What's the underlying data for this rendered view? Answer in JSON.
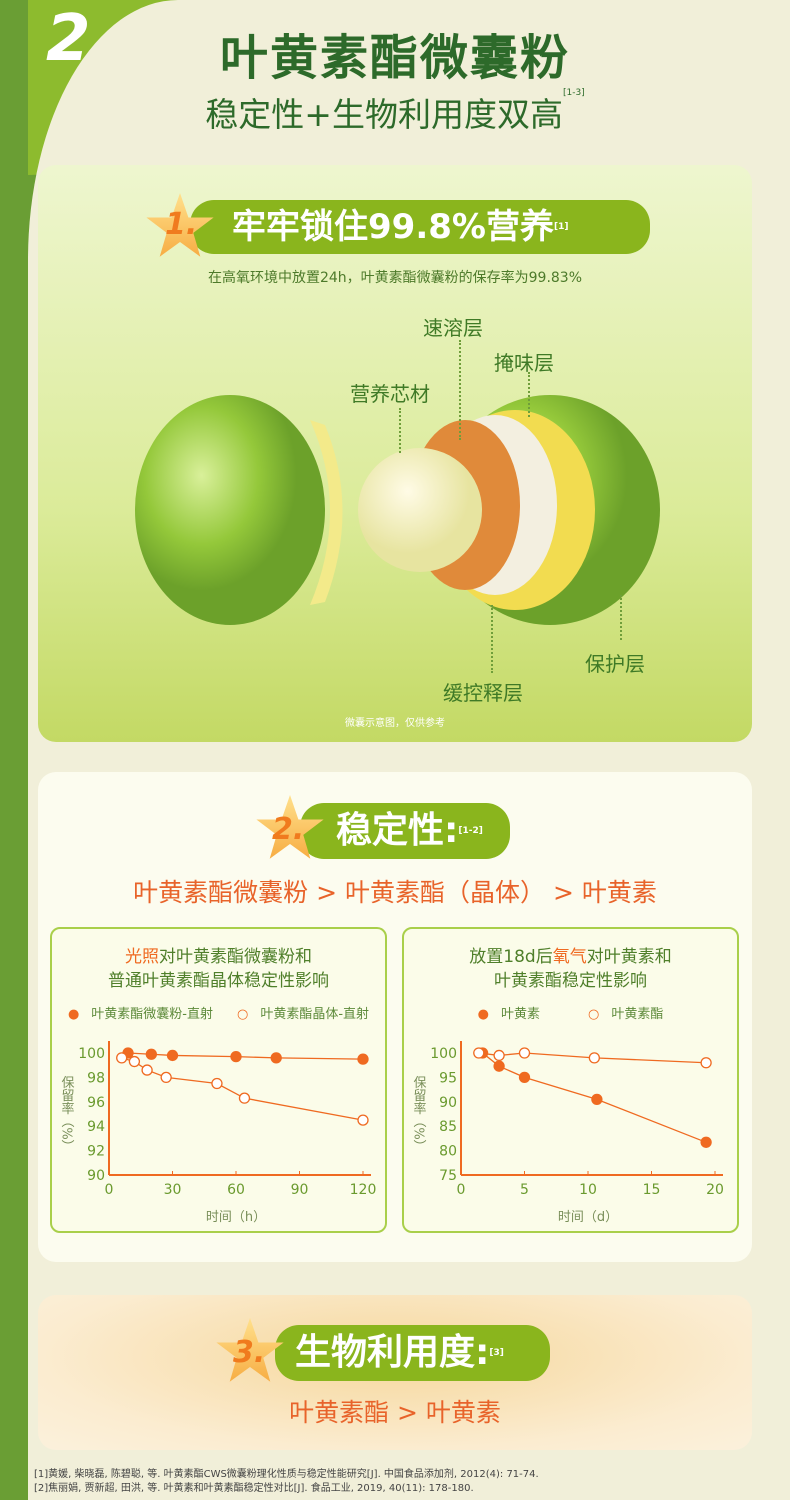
{
  "header": {
    "number": "2",
    "title": "叶黄素酯微囊粉",
    "subtitle": "稳定性+生物利用度双高",
    "subtitle_ref": "[1-3]"
  },
  "section1": {
    "num": "1.",
    "heading": "牢牢锁住99.8%营养",
    "ref": "[1]",
    "desc": "在高氧环境中放置24h，叶黄素酯微囊粉的保存率为99.83%",
    "layers": {
      "fast_dissolve": "速溶层",
      "taste_mask": "掩味层",
      "core": "营养芯材",
      "controlled_release": "缓控释层",
      "protective": "保护层"
    },
    "note": "微囊示意图，仅供参考"
  },
  "section2": {
    "num": "2.",
    "heading": "稳定性:",
    "ref": "[1-2]",
    "comparison": "叶黄素酯微囊粉 > 叶黄素酯（晶体） > 叶黄素"
  },
  "section3": {
    "num": "3.",
    "heading": "生物利用度:",
    "ref": "[3]",
    "comparison": "叶黄素酯 > 叶黄素"
  },
  "references": [
    "[1]黄媛, 柴晓磊, 陈碧聪, 等. 叶黄素酯CWS微囊粉理化性质与稳定性能研究[J]. 中国食品添加剂, 2012(4): 71-74.",
    "[2]焦丽娟, 贾新超, 田洪, 等. 叶黄素和叶黄素酯稳定性对比[J]. 食品工业, 2019, 40(11): 178-180."
  ],
  "colors": {
    "brand_green": "#6a9e34",
    "pill_green": "#8ab51d",
    "accent_orange": "#ef6a21"
  },
  "chart_data": [
    {
      "type": "line",
      "title_highlight": "光照",
      "title_rest_1": "对叶黄素酯微囊粉和",
      "title_line2": "普通叶黄素酯晶体稳定性影响",
      "xlabel": "时间（h）",
      "ylabel": "保留率（%）",
      "xlim": [
        0,
        120
      ],
      "ylim": [
        90,
        100
      ],
      "xticks": [
        0,
        30,
        60,
        90,
        120
      ],
      "yticks": [
        90,
        92,
        94,
        96,
        98,
        100
      ],
      "grid": false,
      "legend": "top",
      "series": [
        {
          "name": "叶黄素酯微囊粉-直射",
          "marker": "filled",
          "x": [
            9,
            20,
            30,
            60,
            79,
            120
          ],
          "y": [
            100,
            99.9,
            99.8,
            99.7,
            99.6,
            99.5
          ]
        },
        {
          "name": "叶黄素酯晶体-直射",
          "marker": "hollow",
          "x": [
            6,
            12,
            18,
            27,
            51,
            64,
            120
          ],
          "y": [
            99.6,
            99.3,
            98.6,
            98.0,
            97.5,
            96.3,
            94.5
          ]
        }
      ]
    },
    {
      "type": "line",
      "title_pre": "放置18d后",
      "title_highlight": "氧气",
      "title_rest_1": "对叶黄素和",
      "title_line2": "叶黄素酯稳定性影响",
      "xlabel": "时间（d）",
      "ylabel": "保留率（%）",
      "xlim": [
        0,
        20
      ],
      "ylim": [
        75,
        100
      ],
      "xticks": [
        0,
        5,
        10,
        15,
        20
      ],
      "yticks": [
        75,
        80,
        85,
        90,
        95,
        100
      ],
      "grid": false,
      "legend": "top",
      "series": [
        {
          "name": "叶黄素",
          "marker": "filled",
          "x": [
            1.7,
            3,
            5,
            10.7,
            19.3
          ],
          "y": [
            100,
            97.3,
            95,
            90.5,
            81.7
          ]
        },
        {
          "name": "叶黄素酯",
          "marker": "hollow",
          "x": [
            1.4,
            3,
            5,
            10.5,
            19.3
          ],
          "y": [
            100,
            99.5,
            100,
            99,
            98
          ]
        }
      ]
    }
  ]
}
